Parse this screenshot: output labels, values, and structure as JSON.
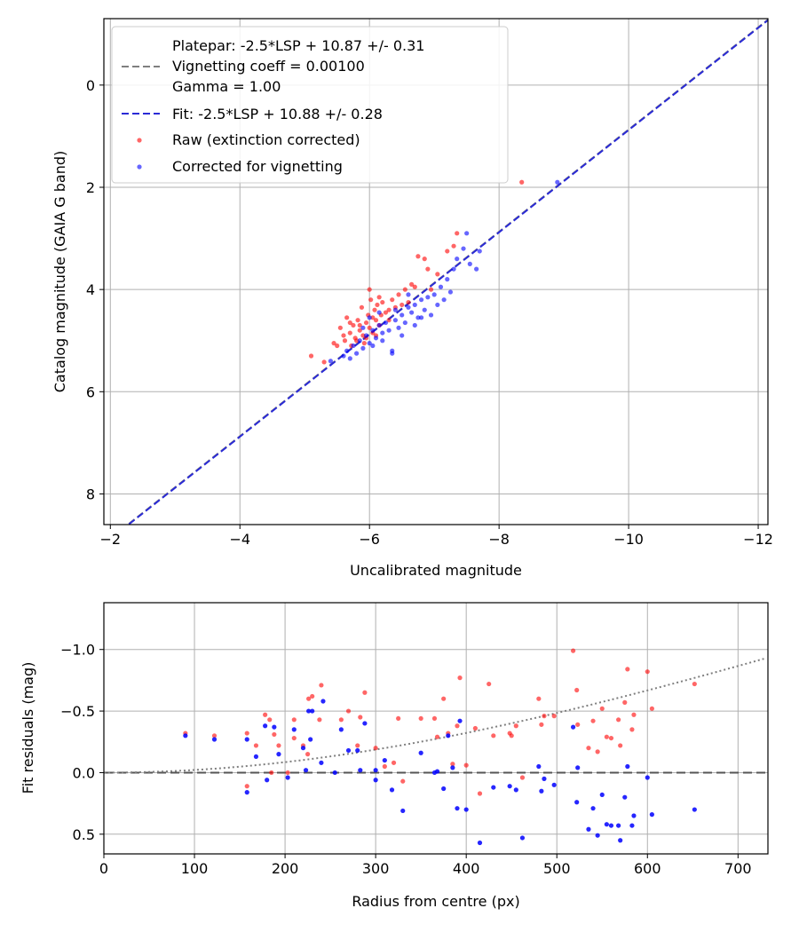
{
  "chart_data": [
    {
      "type": "scatter",
      "xlabel": "Uncalibrated magnitude",
      "ylabel": "Catalog magnitude (GAIA G band)",
      "xlim": [
        -1.9,
        -12.15
      ],
      "ylim": [
        -1.3,
        8.6
      ],
      "xticks": [
        -2,
        -4,
        -6,
        -8,
        -10,
        -12
      ],
      "xtick_labels": [
        "−2",
        "−4",
        "−6",
        "−8",
        "−10",
        "−12"
      ],
      "yticks": [
        0,
        2,
        4,
        6,
        8
      ],
      "ytick_labels": [
        "0",
        "2",
        "4",
        "6",
        "8"
      ],
      "grid": true,
      "legend_position": "upper-left",
      "legend": [
        {
          "kind": "line-dash",
          "color": "#7f7f7f",
          "lines": [
            "Platepar: -2.5*LSP + 10.87 +/- 0.31",
            "Vignetting coeff = 0.00100",
            "Gamma = 1.00"
          ]
        },
        {
          "kind": "line-dash",
          "color": "#2a2ad6",
          "lines": [
            "Fit: -2.5*LSP + 10.88 +/- 0.28"
          ]
        },
        {
          "kind": "dot",
          "color": "#ff0000",
          "lines": [
            "Raw (extinction corrected)"
          ]
        },
        {
          "kind": "dot",
          "color": "#0000ff",
          "lines": [
            "Corrected for vignetting"
          ]
        }
      ],
      "lines": [
        {
          "name": "Platepar",
          "color": "#7f7f7f",
          "slope": 1.0,
          "intercept": 10.87
        },
        {
          "name": "Fit",
          "color": "#2a2ad6",
          "slope": 1.0,
          "intercept": 10.88
        }
      ],
      "series": [
        {
          "name": "Raw (extinction corrected)",
          "color": "#ff0000",
          "points": [
            [
              -5.1,
              5.3
            ],
            [
              -5.3,
              5.42
            ],
            [
              -5.45,
              5.05
            ],
            [
              -5.5,
              5.1
            ],
            [
              -5.55,
              4.75
            ],
            [
              -5.6,
              4.9
            ],
            [
              -5.62,
              5.0
            ],
            [
              -5.65,
              4.55
            ],
            [
              -5.7,
              4.85
            ],
            [
              -5.72,
              5.1
            ],
            [
              -5.75,
              4.7
            ],
            [
              -5.78,
              4.95
            ],
            [
              -5.8,
              5.0
            ],
            [
              -5.82,
              4.6
            ],
            [
              -5.85,
              4.8
            ],
            [
              -5.88,
              4.35
            ],
            [
              -5.9,
              4.9
            ],
            [
              -5.92,
              5.05
            ],
            [
              -5.95,
              4.65
            ],
            [
              -5.98,
              4.5
            ],
            [
              -6.0,
              4.75
            ],
            [
              -6.02,
              4.2
            ],
            [
              -6.05,
              4.85
            ],
            [
              -6.08,
              4.4
            ],
            [
              -6.1,
              4.6
            ],
            [
              -6.12,
              4.3
            ],
            [
              -6.15,
              4.7
            ],
            [
              -6.18,
              4.5
            ],
            [
              -6.2,
              4.25
            ],
            [
              -6.25,
              4.45
            ],
            [
              -6.3,
              4.6
            ],
            [
              -6.35,
              4.2
            ],
            [
              -6.4,
              4.35
            ],
            [
              -6.45,
              4.1
            ],
            [
              -6.5,
              4.3
            ],
            [
              -6.55,
              4.0
            ],
            [
              -6.6,
              4.25
            ],
            [
              -6.65,
              3.9
            ],
            [
              -6.7,
              3.95
            ],
            [
              -6.75,
              3.35
            ],
            [
              -6.85,
              3.4
            ],
            [
              -6.9,
              3.6
            ],
            [
              -6.95,
              4.0
            ],
            [
              -7.05,
              3.7
            ],
            [
              -7.2,
              3.25
            ],
            [
              -7.3,
              3.15
            ],
            [
              -7.35,
              2.9
            ],
            [
              -8.35,
              1.9
            ],
            [
              -5.95,
              4.95
            ],
            [
              -6.05,
              4.55
            ],
            [
              -5.7,
              4.65
            ],
            [
              -6.15,
              4.15
            ],
            [
              -6.0,
              4.0
            ],
            [
              -6.3,
              4.4
            ],
            [
              -5.85,
              4.7
            ],
            [
              -6.1,
              4.9
            ]
          ]
        },
        {
          "name": "Corrected for vignetting",
          "color": "#0000ff",
          "points": [
            [
              -5.4,
              5.4
            ],
            [
              -5.6,
              5.3
            ],
            [
              -5.65,
              5.2
            ],
            [
              -5.7,
              5.35
            ],
            [
              -5.75,
              5.1
            ],
            [
              -5.8,
              5.25
            ],
            [
              -5.85,
              5.0
            ],
            [
              -5.9,
              5.15
            ],
            [
              -5.95,
              4.9
            ],
            [
              -6.0,
              5.05
            ],
            [
              -6.05,
              4.8
            ],
            [
              -6.1,
              4.95
            ],
            [
              -6.15,
              4.7
            ],
            [
              -6.2,
              4.85
            ],
            [
              -6.25,
              4.65
            ],
            [
              -6.3,
              4.8
            ],
            [
              -6.35,
              5.2
            ],
            [
              -6.4,
              4.6
            ],
            [
              -6.45,
              4.75
            ],
            [
              -6.5,
              4.5
            ],
            [
              -6.55,
              4.65
            ],
            [
              -6.6,
              4.35
            ],
            [
              -6.65,
              4.45
            ],
            [
              -6.7,
              4.3
            ],
            [
              -6.75,
              4.55
            ],
            [
              -6.8,
              4.2
            ],
            [
              -6.85,
              4.4
            ],
            [
              -6.9,
              4.15
            ],
            [
              -6.95,
              4.5
            ],
            [
              -7.0,
              4.1
            ],
            [
              -7.05,
              4.3
            ],
            [
              -7.1,
              3.95
            ],
            [
              -7.15,
              4.2
            ],
            [
              -7.2,
              3.8
            ],
            [
              -7.3,
              3.6
            ],
            [
              -7.35,
              3.4
            ],
            [
              -7.45,
              3.2
            ],
            [
              -7.5,
              2.9
            ],
            [
              -7.55,
              3.5
            ],
            [
              -7.65,
              3.6
            ],
            [
              -7.7,
              3.25
            ],
            [
              -8.9,
              1.9
            ],
            [
              -6.0,
              4.55
            ],
            [
              -6.2,
              5.0
            ],
            [
              -6.35,
              5.25
            ],
            [
              -6.5,
              4.9
            ],
            [
              -6.7,
              4.7
            ],
            [
              -5.9,
              4.75
            ],
            [
              -6.15,
              4.45
            ],
            [
              -6.4,
              4.4
            ],
            [
              -6.6,
              4.1
            ],
            [
              -7.25,
              4.05
            ],
            [
              -6.8,
              4.55
            ],
            [
              -6.05,
              5.1
            ]
          ]
        }
      ]
    },
    {
      "type": "scatter",
      "xlabel": "Radius from centre (px)",
      "ylabel": "Fit residuals (mag)",
      "xlim": [
        0,
        733
      ],
      "ylim": [
        -1.38,
        0.66
      ],
      "xticks": [
        0,
        100,
        200,
        300,
        400,
        500,
        600,
        700
      ],
      "xtick_labels": [
        "0",
        "100",
        "200",
        "300",
        "400",
        "500",
        "600",
        "700"
      ],
      "yticks": [
        0.5,
        0.0,
        -0.5,
        -1.0
      ],
      "ytick_labels": [
        "0.5",
        "0.0",
        "−0.5",
        "−1.0"
      ],
      "grid": true,
      "zero_line": 0.0,
      "vignetting_curve": {
        "coeff": 0.001,
        "gamma": 1.0
      },
      "series": [
        {
          "name": "Raw",
          "color": "#ff0000",
          "points": [
            [
              90,
              -0.32
            ],
            [
              122,
              -0.3
            ],
            [
              158,
              0.11
            ],
            [
              158,
              -0.32
            ],
            [
              168,
              -0.22
            ],
            [
              178,
              -0.47
            ],
            [
              183,
              -0.43
            ],
            [
              185,
              0.0
            ],
            [
              188,
              -0.31
            ],
            [
              193,
              -0.22
            ],
            [
              203,
              0.0
            ],
            [
              210,
              -0.43
            ],
            [
              210,
              -0.28
            ],
            [
              220,
              -0.22
            ],
            [
              225,
              -0.15
            ],
            [
              226,
              -0.6
            ],
            [
              230,
              -0.62
            ],
            [
              238,
              -0.43
            ],
            [
              240,
              -0.71
            ],
            [
              262,
              -0.43
            ],
            [
              270,
              -0.5
            ],
            [
              280,
              -0.22
            ],
            [
              283,
              -0.45
            ],
            [
              288,
              -0.65
            ],
            [
              300,
              -0.2
            ],
            [
              310,
              -0.05
            ],
            [
              320,
              -0.08
            ],
            [
              325,
              -0.44
            ],
            [
              330,
              0.07
            ],
            [
              350,
              -0.44
            ],
            [
              365,
              -0.44
            ],
            [
              368,
              -0.29
            ],
            [
              375,
              -0.6
            ],
            [
              380,
              -0.32
            ],
            [
              385,
              -0.07
            ],
            [
              390,
              -0.38
            ],
            [
              393,
              -0.77
            ],
            [
              400,
              -0.06
            ],
            [
              410,
              -0.36
            ],
            [
              415,
              0.17
            ],
            [
              425,
              -0.72
            ],
            [
              430,
              -0.3
            ],
            [
              448,
              -0.32
            ],
            [
              450,
              -0.3
            ],
            [
              455,
              -0.38
            ],
            [
              462,
              0.04
            ],
            [
              480,
              -0.6
            ],
            [
              483,
              -0.39
            ],
            [
              486,
              -0.46
            ],
            [
              497,
              -0.46
            ],
            [
              518,
              -0.99
            ],
            [
              522,
              -0.67
            ],
            [
              523,
              -0.39
            ],
            [
              535,
              -0.2
            ],
            [
              540,
              -0.42
            ],
            [
              545,
              -0.17
            ],
            [
              550,
              -0.52
            ],
            [
              555,
              -0.29
            ],
            [
              560,
              -0.28
            ],
            [
              568,
              -0.43
            ],
            [
              570,
              -0.22
            ],
            [
              575,
              -0.57
            ],
            [
              578,
              -0.84
            ],
            [
              583,
              -0.35
            ],
            [
              585,
              -0.47
            ],
            [
              600,
              -0.82
            ],
            [
              605,
              -0.52
            ],
            [
              652,
              -0.72
            ]
          ]
        },
        {
          "name": "Corrected",
          "color": "#0000ff",
          "points": [
            [
              90,
              -0.3
            ],
            [
              122,
              -0.27
            ],
            [
              158,
              0.16
            ],
            [
              158,
              -0.27
            ],
            [
              168,
              -0.13
            ],
            [
              178,
              -0.38
            ],
            [
              180,
              0.06
            ],
            [
              188,
              -0.37
            ],
            [
              193,
              -0.15
            ],
            [
              203,
              0.04
            ],
            [
              210,
              -0.35
            ],
            [
              220,
              -0.2
            ],
            [
              223,
              -0.02
            ],
            [
              226,
              -0.5
            ],
            [
              228,
              -0.27
            ],
            [
              230,
              -0.5
            ],
            [
              240,
              -0.08
            ],
            [
              242,
              -0.58
            ],
            [
              255,
              0.0
            ],
            [
              262,
              -0.35
            ],
            [
              270,
              -0.18
            ],
            [
              280,
              -0.18
            ],
            [
              283,
              -0.02
            ],
            [
              288,
              -0.4
            ],
            [
              300,
              0.06
            ],
            [
              300,
              -0.02
            ],
            [
              310,
              -0.1
            ],
            [
              318,
              0.14
            ],
            [
              330,
              0.31
            ],
            [
              350,
              -0.16
            ],
            [
              365,
              0.0
            ],
            [
              368,
              -0.01
            ],
            [
              375,
              0.13
            ],
            [
              380,
              -0.3
            ],
            [
              385,
              -0.04
            ],
            [
              390,
              0.29
            ],
            [
              393,
              -0.42
            ],
            [
              400,
              0.3
            ],
            [
              415,
              0.57
            ],
            [
              430,
              0.12
            ],
            [
              448,
              0.11
            ],
            [
              455,
              0.14
            ],
            [
              462,
              0.53
            ],
            [
              480,
              -0.05
            ],
            [
              483,
              0.15
            ],
            [
              486,
              0.05
            ],
            [
              497,
              0.1
            ],
            [
              518,
              -0.37
            ],
            [
              522,
              0.24
            ],
            [
              523,
              -0.04
            ],
            [
              535,
              0.46
            ],
            [
              540,
              0.29
            ],
            [
              545,
              0.51
            ],
            [
              550,
              0.18
            ],
            [
              555,
              0.42
            ],
            [
              560,
              0.43
            ],
            [
              568,
              0.43
            ],
            [
              570,
              0.55
            ],
            [
              575,
              0.2
            ],
            [
              578,
              -0.05
            ],
            [
              583,
              0.43
            ],
            [
              585,
              0.35
            ],
            [
              600,
              0.04
            ],
            [
              605,
              0.34
            ],
            [
              652,
              0.3
            ]
          ]
        }
      ]
    }
  ]
}
